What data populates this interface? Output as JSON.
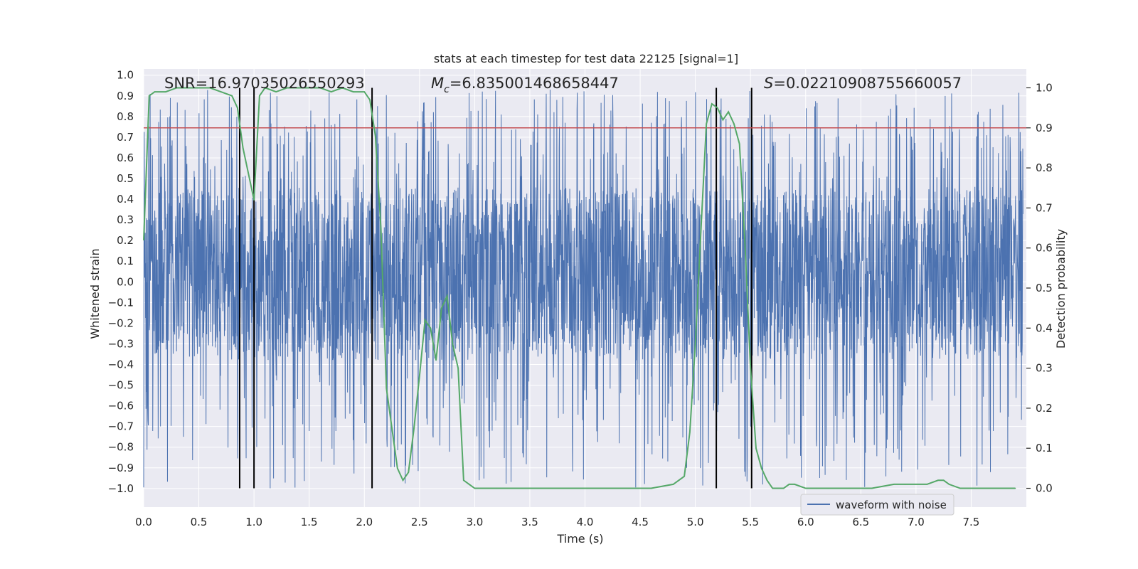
{
  "chart_data": {
    "type": "line",
    "title": "stats at each timestep for test data 22125 [signal=1]",
    "xlabel": "Time (s)",
    "ylabel_left": "Whitened strain",
    "ylabel_right": "Detection probability",
    "xlim": [
      0.0,
      8.0
    ],
    "ylim_left": [
      -1.09,
      1.03
    ],
    "ylim_right": [
      -0.047,
      1.047
    ],
    "x_ticks": [
      0.0,
      0.5,
      1.0,
      1.5,
      2.0,
      2.5,
      3.0,
      3.5,
      4.0,
      4.5,
      5.0,
      5.5,
      6.0,
      6.5,
      7.0,
      7.5
    ],
    "x_tick_labels": [
      "0.0",
      "0.5",
      "1.0",
      "1.5",
      "2.0",
      "2.5",
      "3.0",
      "3.5",
      "4.0",
      "4.5",
      "5.0",
      "5.5",
      "6.0",
      "6.5",
      "7.0",
      "7.5"
    ],
    "y_left_ticks": [
      1.0,
      0.9,
      0.8,
      0.7,
      0.6,
      0.5,
      0.4,
      0.3,
      0.2,
      0.1,
      0.0,
      -0.1,
      -0.2,
      -0.3,
      -0.4,
      -0.5,
      -0.6,
      -0.7,
      -0.8,
      -0.9,
      -1.0
    ],
    "y_left_tick_labels": [
      "1.0",
      "0.9",
      "0.8",
      "0.7",
      "0.6",
      "0.5",
      "0.4",
      "0.3",
      "0.2",
      "0.1",
      "0.0",
      "−0.1",
      "−0.2",
      "−0.3",
      "−0.4",
      "−0.5",
      "−0.6",
      "−0.7",
      "−0.8",
      "−0.9",
      "−1.0"
    ],
    "y_right_ticks": [
      1.0,
      0.9,
      0.8,
      0.7,
      0.6,
      0.5,
      0.4,
      0.3,
      0.2,
      0.1,
      0.0
    ],
    "y_right_tick_labels": [
      "1.0",
      "0.9",
      "0.8",
      "0.7",
      "0.6",
      "0.5",
      "0.4",
      "0.3",
      "0.2",
      "0.1",
      "0.0"
    ],
    "annotations": {
      "snr": "SNR=16.97035026550293",
      "mc_symbol": "M",
      "mc_sub": "c",
      "mc_value": "=6.835001468658447",
      "s_symbol": "S",
      "s_value": "=0.02210908755660057"
    },
    "threshold": 0.9,
    "vertical_lines_x": [
      0.87,
      1.0,
      2.07,
      5.19,
      5.51
    ],
    "legend": {
      "label": "waveform with noise",
      "position": "lower-right"
    },
    "waveform": {
      "name": "waveform with noise",
      "description_range": "noise band spanning roughly -0.45 to 0.55, spikes reaching about -1.0 and 0.93",
      "y_min": -1.0,
      "y_max": 0.93
    },
    "series": [
      {
        "name": "detection probability",
        "axis": "right",
        "x": [
          0.0,
          0.05,
          0.1,
          0.2,
          0.3,
          0.4,
          0.5,
          0.6,
          0.7,
          0.8,
          0.85,
          0.9,
          1.0,
          1.05,
          1.1,
          1.2,
          1.3,
          1.4,
          1.5,
          1.6,
          1.7,
          1.8,
          1.9,
          2.0,
          2.05,
          2.1,
          2.15,
          2.2,
          2.3,
          2.35,
          2.4,
          2.45,
          2.5,
          2.55,
          2.6,
          2.65,
          2.7,
          2.75,
          2.8,
          2.85,
          2.9,
          2.95,
          3.0,
          3.1,
          3.2,
          3.4,
          3.6,
          3.8,
          4.0,
          4.2,
          4.4,
          4.6,
          4.8,
          4.9,
          4.95,
          5.0,
          5.05,
          5.1,
          5.15,
          5.2,
          5.25,
          5.3,
          5.35,
          5.4,
          5.45,
          5.5,
          5.55,
          5.6,
          5.65,
          5.7,
          5.75,
          5.8,
          5.85,
          5.9,
          6.0,
          6.1,
          6.2,
          6.4,
          6.6,
          6.8,
          6.9,
          7.0,
          7.1,
          7.2,
          7.25,
          7.3,
          7.4,
          7.5,
          7.7,
          7.9
        ],
        "values": [
          0.62,
          0.98,
          0.99,
          0.99,
          1.0,
          1.0,
          1.0,
          1.0,
          0.99,
          0.98,
          0.95,
          0.85,
          0.72,
          0.98,
          1.0,
          0.99,
          1.0,
          1.0,
          1.0,
          1.0,
          0.99,
          1.0,
          0.99,
          0.99,
          0.97,
          0.88,
          0.65,
          0.25,
          0.05,
          0.02,
          0.04,
          0.15,
          0.28,
          0.42,
          0.4,
          0.32,
          0.45,
          0.48,
          0.36,
          0.3,
          0.02,
          0.01,
          0.0,
          0.0,
          0.0,
          0.0,
          0.0,
          0.0,
          0.0,
          0.0,
          0.0,
          0.0,
          0.01,
          0.03,
          0.14,
          0.36,
          0.64,
          0.91,
          0.96,
          0.95,
          0.92,
          0.94,
          0.91,
          0.86,
          0.61,
          0.3,
          0.1,
          0.05,
          0.02,
          0.0,
          0.0,
          0.0,
          0.01,
          0.01,
          0.0,
          0.0,
          0.0,
          0.0,
          0.0,
          0.01,
          0.01,
          0.01,
          0.01,
          0.02,
          0.02,
          0.01,
          0.0,
          0.0,
          0.0,
          0.0
        ]
      }
    ],
    "colors": {
      "waveform": "#4c72b0",
      "probability": "#55a868",
      "threshold": "#c44e52",
      "vlines": "#000000",
      "plot_bg": "#eaeaf2",
      "grid": "#ffffff"
    }
  }
}
